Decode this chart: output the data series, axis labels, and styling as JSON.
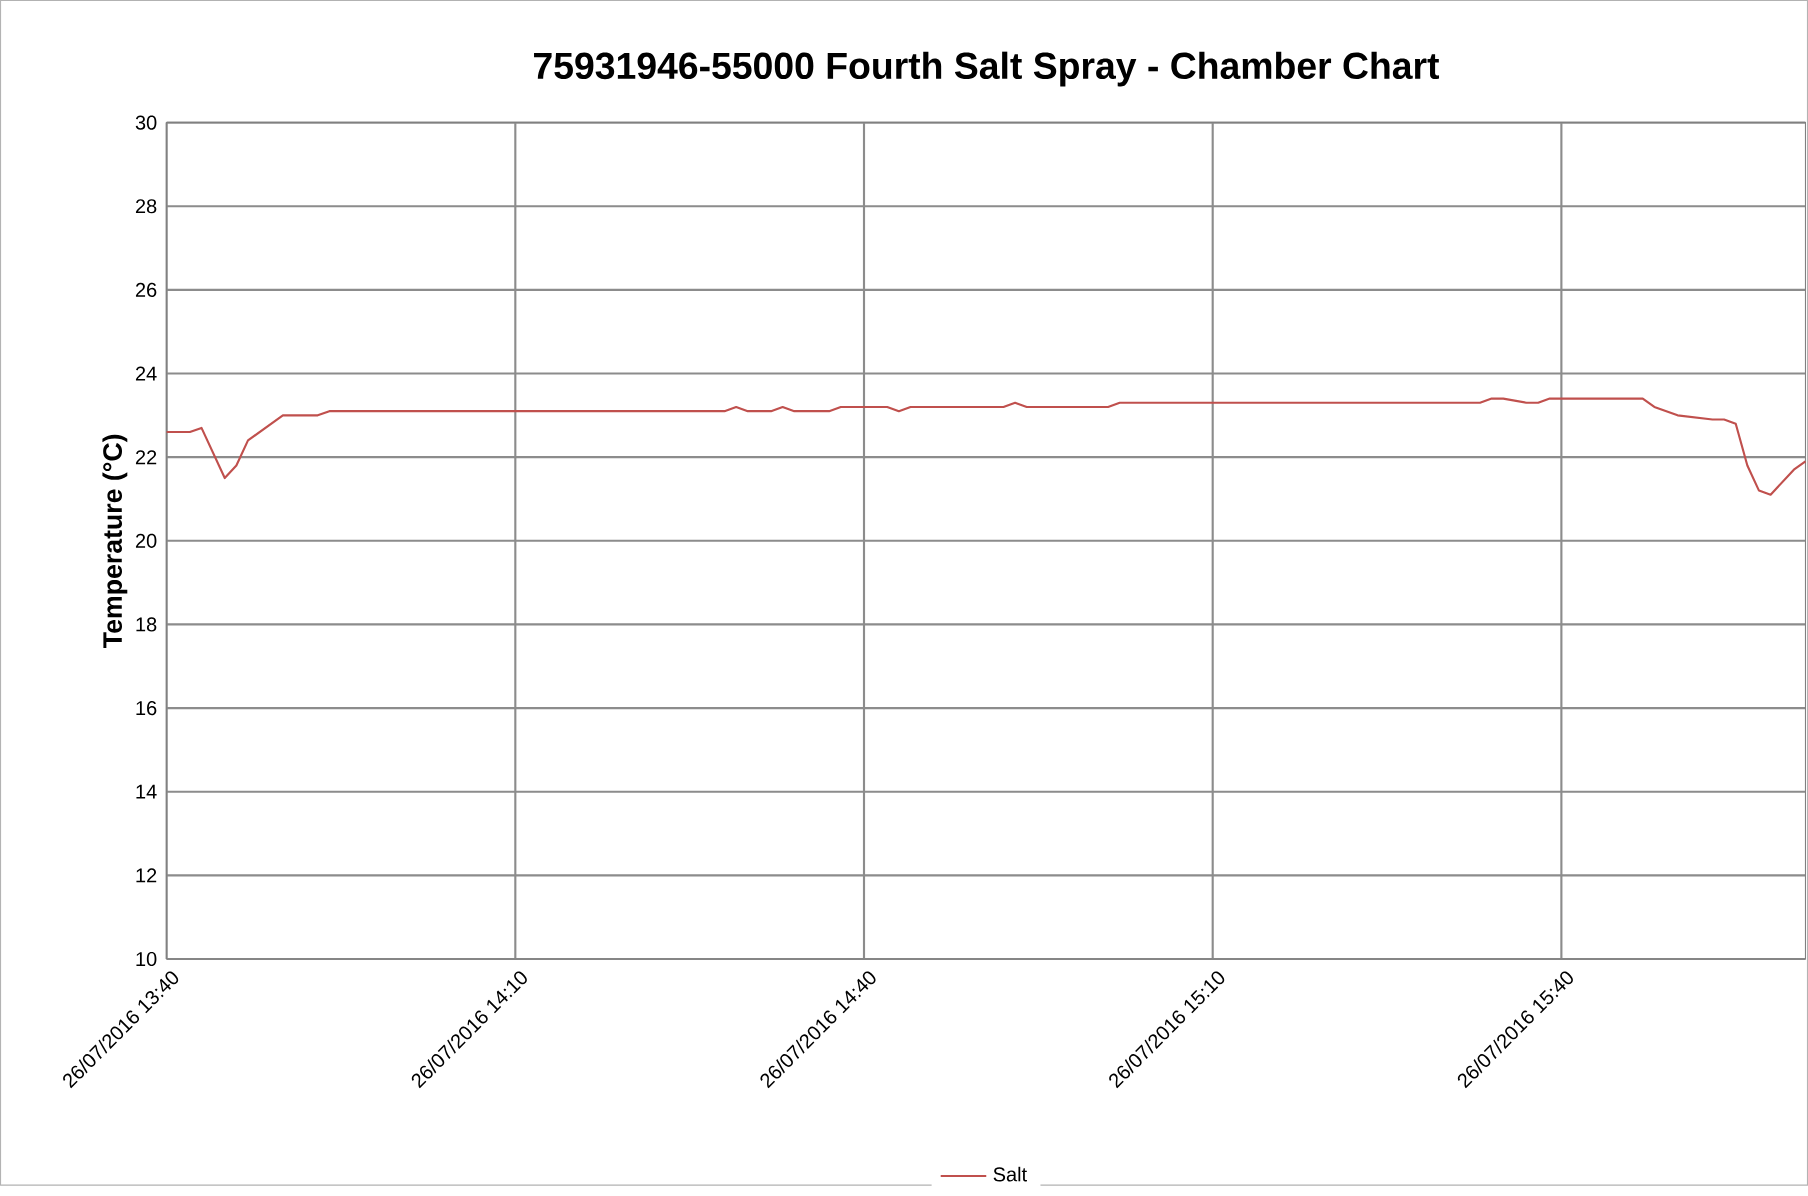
{
  "chart_data": {
    "type": "line",
    "title": "75931946-55000 Fourth Salt Spray - Chamber Chart",
    "ylabel": "Temperature (°C)",
    "x": [
      "2016-07-26T13:40",
      "2016-07-26T13:42",
      "2016-07-26T13:43",
      "2016-07-26T13:45",
      "2016-07-26T13:46",
      "2016-07-26T13:47",
      "2016-07-26T13:50",
      "2016-07-26T13:53",
      "2016-07-26T13:54",
      "2016-07-26T14:28",
      "2016-07-26T14:29",
      "2016-07-26T14:30",
      "2016-07-26T14:32",
      "2016-07-26T14:33",
      "2016-07-26T14:34",
      "2016-07-26T14:37",
      "2016-07-26T14:38",
      "2016-07-26T14:42",
      "2016-07-26T14:43",
      "2016-07-26T14:44",
      "2016-07-26T14:52",
      "2016-07-26T14:53",
      "2016-07-26T14:54",
      "2016-07-26T15:01",
      "2016-07-26T15:02",
      "2016-07-26T15:33",
      "2016-07-26T15:34",
      "2016-07-26T15:35",
      "2016-07-26T15:37",
      "2016-07-26T15:38",
      "2016-07-26T15:39",
      "2016-07-26T15:47",
      "2016-07-26T15:48",
      "2016-07-26T15:50",
      "2016-07-26T15:53",
      "2016-07-26T15:54",
      "2016-07-26T15:55",
      "2016-07-26T15:56",
      "2016-07-26T15:57",
      "2016-07-26T15:58",
      "2016-07-26T16:00",
      "2016-07-26T16:01"
    ],
    "series": [
      {
        "name": "Salt",
        "color": "#c0504d",
        "values": [
          22.6,
          22.6,
          22.7,
          21.5,
          21.8,
          22.4,
          23.0,
          23.0,
          23.1,
          23.1,
          23.2,
          23.1,
          23.1,
          23.2,
          23.1,
          23.1,
          23.2,
          23.2,
          23.1,
          23.2,
          23.2,
          23.3,
          23.2,
          23.2,
          23.3,
          23.3,
          23.4,
          23.4,
          23.3,
          23.3,
          23.4,
          23.4,
          23.2,
          23.0,
          22.9,
          22.9,
          22.8,
          21.8,
          21.2,
          21.1,
          21.7,
          21.9
        ]
      }
    ],
    "xlim": [
      "2016-07-26T13:40",
      "2016-07-26T16:01"
    ],
    "xticks": [
      {
        "value": "2016-07-26T13:40",
        "label": "26/07/2016 13:40"
      },
      {
        "value": "2016-07-26T14:10",
        "label": "26/07/2016 14:10"
      },
      {
        "value": "2016-07-26T14:40",
        "label": "26/07/2016 14:40"
      },
      {
        "value": "2016-07-26T15:10",
        "label": "26/07/2016 15:10"
      },
      {
        "value": "2016-07-26T15:40",
        "label": "26/07/2016 15:40"
      }
    ],
    "ylim": [
      10,
      30
    ],
    "yticks": [
      10,
      12,
      14,
      16,
      18,
      20,
      22,
      24,
      26,
      28,
      30
    ],
    "grid": true,
    "legend": "bottom",
    "marker": "none",
    "line_style": "solid"
  }
}
